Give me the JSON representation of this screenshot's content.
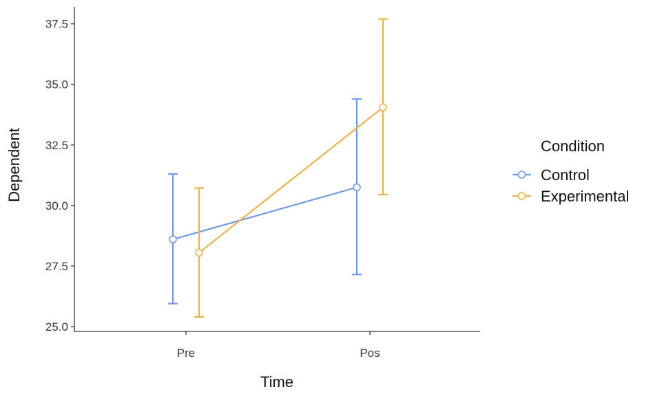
{
  "chart_data": {
    "type": "line",
    "xlabel": "Time",
    "ylabel": "Dependent",
    "categories": [
      "Pre",
      "Pos"
    ],
    "ylim": [
      24.8,
      38.2
    ],
    "yticks": [
      25.0,
      27.5,
      30.0,
      32.5,
      35.0,
      37.5
    ],
    "ytick_labels": [
      "25.0",
      "27.5",
      "30.0",
      "32.5",
      "35.0",
      "37.5"
    ],
    "grid": false,
    "error_bars": true,
    "legend": {
      "title": "Condition",
      "placement": "right"
    },
    "series": [
      {
        "name": "Control",
        "color": "#6f9be6",
        "values": [
          28.6,
          30.75
        ],
        "lower": [
          25.95,
          27.15
        ],
        "upper": [
          31.3,
          34.4
        ]
      },
      {
        "name": "Experimental",
        "color": "#e8b34f",
        "values": [
          28.05,
          34.05
        ],
        "lower": [
          25.4,
          30.45
        ],
        "upper": [
          30.72,
          37.7
        ]
      }
    ]
  }
}
